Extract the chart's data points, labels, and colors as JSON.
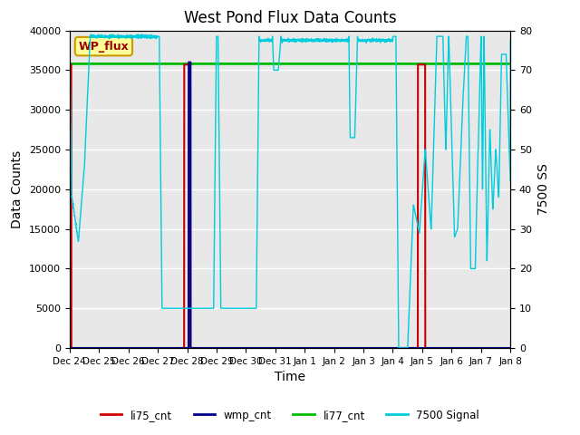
{
  "title": "West Pond Flux Data Counts",
  "xlabel": "Time",
  "ylabel_left": "Data Counts",
  "ylabel_right": "7500 SS",
  "ylim_left": [
    0,
    40000
  ],
  "ylim_right": [
    0,
    80
  ],
  "tick_labels": [
    "Dec 24",
    "Dec 25",
    "Dec 26",
    "Dec 27",
    "Dec 28",
    "Dec 29",
    "Dec 30",
    "Dec 31",
    "Jan 1",
    "Jan 2",
    "Jan 3",
    "Jan 4",
    "Jan 5",
    "Jan 6",
    "Jan 7",
    "Jan 8"
  ],
  "li77_cnt_value": 35800,
  "li75_color": "#cc0000",
  "wmp_color": "#000088",
  "li77_color": "#00bb00",
  "signal_color": "#00ccdd",
  "bg_color": "#e8e8e8",
  "legend_labels": [
    "li75_cnt",
    "wmp_cnt",
    "li77_cnt",
    "7500 Signal"
  ],
  "legend_colors": [
    "#cc0000",
    "#000088",
    "#00bb00",
    "#00ccdd"
  ],
  "annotation_text": "WP_flux",
  "annotation_bg": "#ffff99",
  "annotation_border": "#cc9900",
  "figsize": [
    6.4,
    4.8
  ],
  "dpi": 100
}
